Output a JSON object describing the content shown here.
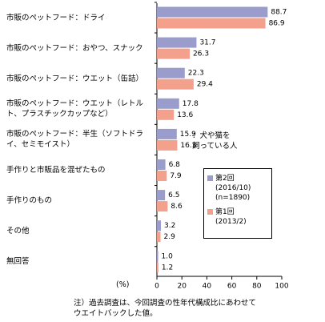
{
  "chart_data": {
    "type": "barh",
    "categories": [
      "市販のペットフード：ドライ",
      "市販のペットフード：おやつ、スナック",
      "市販のペットフード：ウエット（缶詰）",
      "市販のペットフード：ウエット（レトル\nト、プラスチックカップなど）",
      "市販のペットフード：半生（ソフトドラ\nイ、セミモイスト）",
      "手作りと市販品を混ぜたもの",
      "手作りのもの",
      "その他",
      "無回答"
    ],
    "series": [
      {
        "name": "第2回\n(2016/10)\n(n=1890)",
        "color": "#9a9ccc",
        "values": [
          88.7,
          31.7,
          22.3,
          17.8,
          15.9,
          6.8,
          6.5,
          3.2,
          1.0
        ],
        "value_labels": [
          "88.7",
          "31.7",
          "22.3",
          "17.8",
          "15.9",
          "6.8",
          "6.5",
          "3.2",
          "1.0"
        ]
      },
      {
        "name": "第1回\n(2013/2)",
        "color": "#f3a08c",
        "values": [
          86.9,
          26.3,
          29.4,
          13.6,
          16.3,
          7.9,
          8.6,
          2.9,
          1.2
        ],
        "value_labels": [
          "86.9",
          "26.3",
          "29.4",
          "13.6",
          "16.3",
          "7.9",
          "8.6",
          "2.9",
          "1.2"
        ]
      }
    ],
    "xlim": [
      0,
      100
    ],
    "xticks": [
      0,
      20,
      40,
      60,
      80,
      100
    ],
    "x_label": "(%)",
    "legend_title": "：犬や猫を\n飼っている人",
    "note": "注）過去調査は、今回調査の性年代構成比にあわせて\nウエイトバックした値。"
  }
}
